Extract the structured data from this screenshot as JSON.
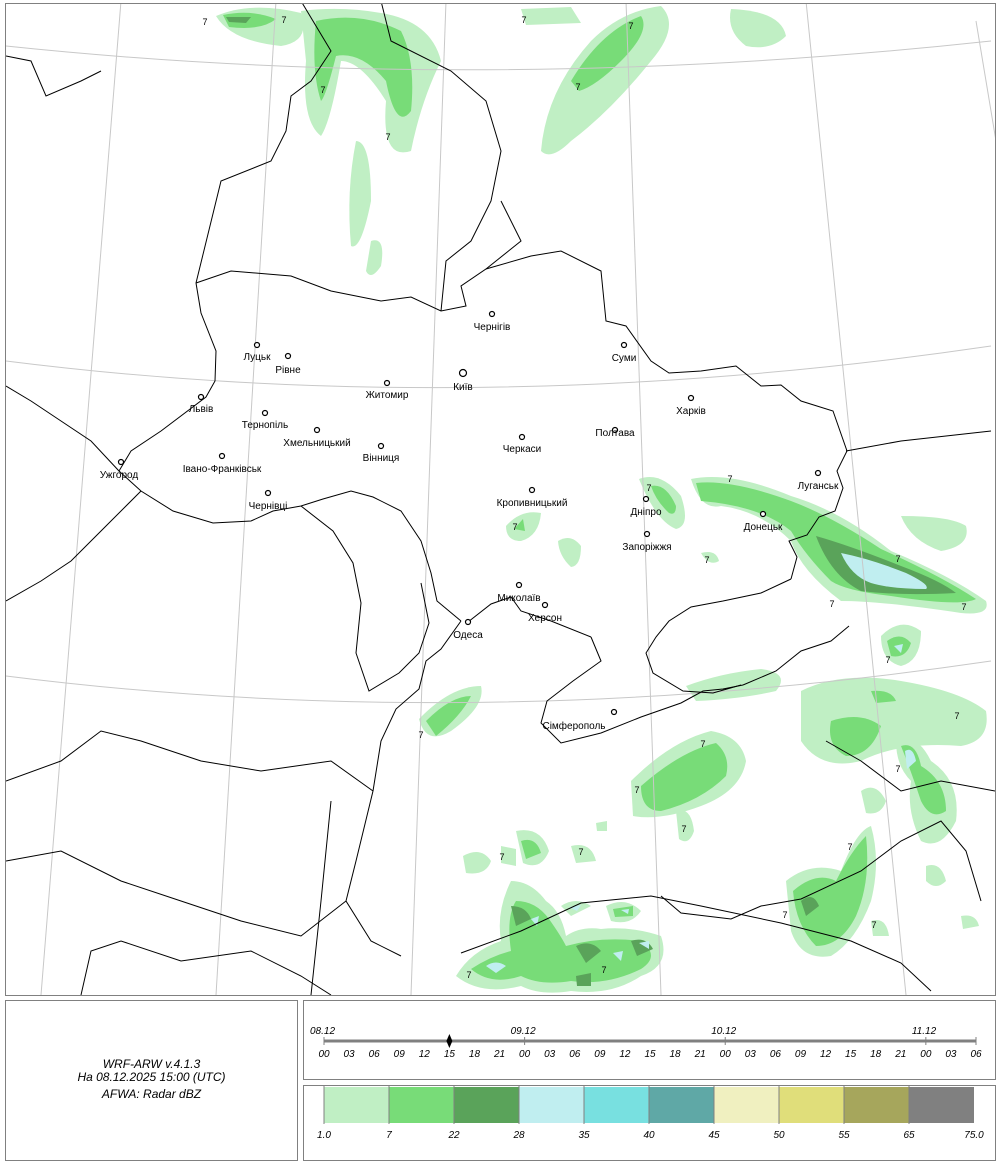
{
  "info": {
    "model": "WRF-ARW v.4.1.3",
    "valid_time": "На 08.12.2025 15:00 (UTC)",
    "field": "AFWA: Radar dBZ"
  },
  "timeline": {
    "dates": [
      "08.12",
      "09.12",
      "10.12",
      "11.12"
    ],
    "hours": [
      "00",
      "03",
      "06",
      "09",
      "12",
      "15",
      "18",
      "21",
      "00",
      "03",
      "06",
      "09",
      "12",
      "15",
      "18",
      "21",
      "00",
      "03",
      "06",
      "09",
      "12",
      "15",
      "18",
      "21",
      "00",
      "03",
      "06"
    ],
    "current_index": 5,
    "current_label": "08.12 15"
  },
  "legend": {
    "thresholds": [
      "1.0",
      "7",
      "22",
      "28",
      "35",
      "40",
      "45",
      "50",
      "55",
      "65",
      "75.0"
    ],
    "colors": [
      "#c0efc4",
      "#78dc78",
      "#5aa35a",
      "#c0eef0",
      "#78e0e0",
      "#5fa8a6",
      "#f0f0c0",
      "#e0de7a",
      "#a6a65c",
      "#808080"
    ]
  },
  "map": {
    "contour_label": "7",
    "cities": [
      {
        "name": "Чернігів"
      },
      {
        "name": "Луцьк"
      },
      {
        "name": "Рівне"
      },
      {
        "name": "Київ"
      },
      {
        "name": "Житомир"
      },
      {
        "name": "Суми"
      },
      {
        "name": "Львів"
      },
      {
        "name": "Тернопіль"
      },
      {
        "name": "Харків"
      },
      {
        "name": "Хмельницький"
      },
      {
        "name": "Черкаси"
      },
      {
        "name": "Полтава"
      },
      {
        "name": "Вінниця"
      },
      {
        "name": "Ужгород"
      },
      {
        "name": "Івано-Франківськ"
      },
      {
        "name": "Луганськ"
      },
      {
        "name": "Кропивницький"
      },
      {
        "name": "Чернівці"
      },
      {
        "name": "Дніпро"
      },
      {
        "name": "Донецьк"
      },
      {
        "name": "Запоріжжя"
      },
      {
        "name": "Миколаїв"
      },
      {
        "name": "Херсон"
      },
      {
        "name": "Одеса"
      },
      {
        "name": "Сімферополь"
      }
    ],
    "colors": {
      "border": "#000000",
      "graticule": "#c8c8c8"
    }
  }
}
